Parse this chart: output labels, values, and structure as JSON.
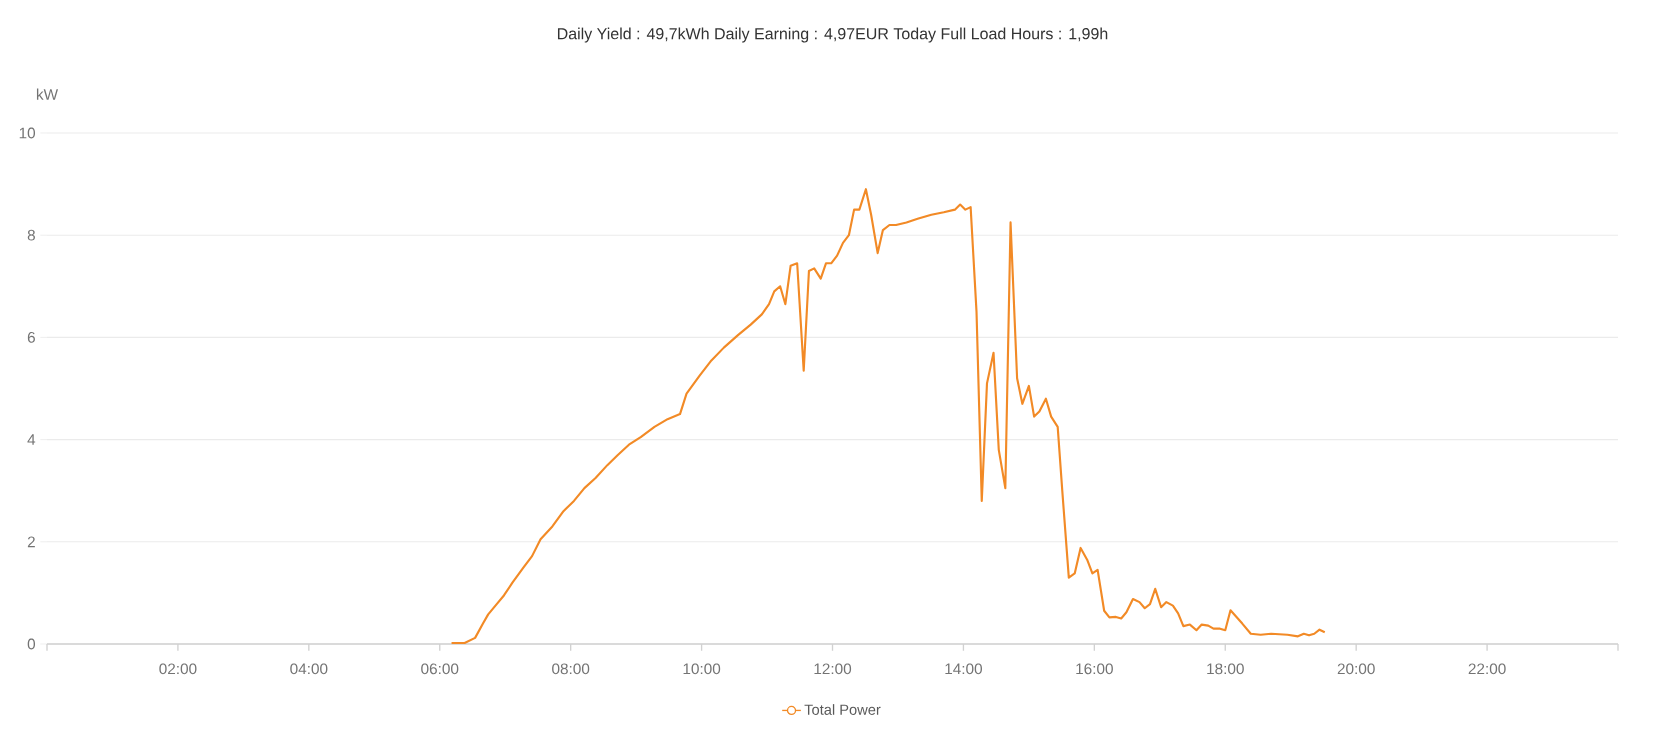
{
  "chart_data": {
    "type": "line",
    "title": "Daily Yield :  49,7kWh      Daily Earning :  4,97EUR      Today Full Load Hours :  1,99h",
    "ylabel": "kW",
    "xlim": [
      0,
      24
    ],
    "xticks": [
      {
        "value": 0,
        "label": null
      },
      {
        "value": 2,
        "label": "02:00"
      },
      {
        "value": 4,
        "label": "04:00"
      },
      {
        "value": 6,
        "label": "06:00"
      },
      {
        "value": 8,
        "label": "08:00"
      },
      {
        "value": 10,
        "label": "10:00"
      },
      {
        "value": 12,
        "label": "12:00"
      },
      {
        "value": 14,
        "label": "14:00"
      },
      {
        "value": 16,
        "label": "16:00"
      },
      {
        "value": 18,
        "label": "18:00"
      },
      {
        "value": 20,
        "label": "20:00"
      },
      {
        "value": 22,
        "label": "22:00"
      },
      {
        "value": 24,
        "label": null
      }
    ],
    "ylim": [
      0,
      10
    ],
    "yticks": [
      0,
      2,
      4,
      6,
      8,
      10
    ],
    "grid": "y",
    "legend": "bottom",
    "series": [
      {
        "name": "Total Power",
        "color": "#f28a26",
        "x": [
          6.18,
          6.38,
          6.54,
          6.66,
          6.74,
          6.87,
          6.98,
          7.11,
          7.28,
          7.41,
          7.54,
          7.72,
          7.89,
          8.05,
          8.21,
          8.38,
          8.56,
          8.72,
          8.89,
          9.07,
          9.28,
          9.48,
          9.67,
          9.77,
          9.97,
          10.15,
          10.34,
          10.56,
          10.75,
          10.92,
          11.03,
          11.11,
          11.2,
          11.28,
          11.36,
          11.46,
          11.56,
          11.64,
          11.72,
          11.82,
          11.9,
          11.98,
          12.07,
          12.16,
          12.25,
          12.33,
          12.41,
          12.51,
          12.59,
          12.69,
          12.77,
          12.87,
          12.97,
          13.13,
          13.3,
          13.51,
          13.7,
          13.87,
          13.95,
          14.03,
          14.11,
          14.2,
          14.28,
          14.36,
          14.46,
          14.54,
          14.64,
          14.72,
          14.82,
          14.9,
          15.0,
          15.08,
          15.16,
          15.26,
          15.34,
          15.44,
          15.51,
          15.61,
          15.7,
          15.79,
          15.89,
          15.97,
          16.05,
          16.15,
          16.23,
          16.33,
          16.41,
          16.49,
          16.59,
          16.69,
          16.77,
          16.85,
          16.93,
          17.02,
          17.1,
          17.2,
          17.28,
          17.36,
          17.46,
          17.56,
          17.64,
          17.74,
          17.82,
          17.92,
          18.0,
          18.08,
          18.26,
          18.39,
          18.54,
          18.7,
          18.95,
          19.11,
          19.2,
          19.28,
          19.36,
          19.44,
          19.52
        ],
        "values": [
          0.02,
          0.02,
          0.12,
          0.4,
          0.58,
          0.78,
          0.95,
          1.2,
          1.5,
          1.72,
          2.05,
          2.3,
          2.6,
          2.8,
          3.05,
          3.25,
          3.5,
          3.7,
          3.9,
          4.05,
          4.25,
          4.4,
          4.5,
          4.9,
          5.25,
          5.55,
          5.8,
          6.05,
          6.25,
          6.45,
          6.65,
          6.9,
          7.0,
          6.65,
          7.4,
          7.45,
          5.35,
          7.3,
          7.35,
          7.15,
          7.45,
          7.45,
          7.6,
          7.85,
          8.0,
          8.5,
          8.5,
          8.9,
          8.4,
          7.65,
          8.1,
          8.2,
          8.2,
          8.25,
          8.32,
          8.4,
          8.45,
          8.5,
          8.6,
          8.5,
          8.55,
          6.5,
          2.8,
          5.1,
          5.7,
          3.8,
          3.05,
          8.25,
          5.2,
          4.7,
          5.05,
          4.45,
          4.55,
          4.8,
          4.45,
          4.25,
          3.0,
          1.3,
          1.38,
          1.88,
          1.65,
          1.38,
          1.45,
          0.65,
          0.52,
          0.53,
          0.5,
          0.62,
          0.88,
          0.82,
          0.7,
          0.78,
          1.08,
          0.72,
          0.82,
          0.75,
          0.6,
          0.35,
          0.38,
          0.27,
          0.38,
          0.36,
          0.3,
          0.3,
          0.27,
          0.66,
          0.4,
          0.2,
          0.18,
          0.2,
          0.18,
          0.15,
          0.2,
          0.17,
          0.2,
          0.28,
          0.23
        ]
      }
    ]
  }
}
